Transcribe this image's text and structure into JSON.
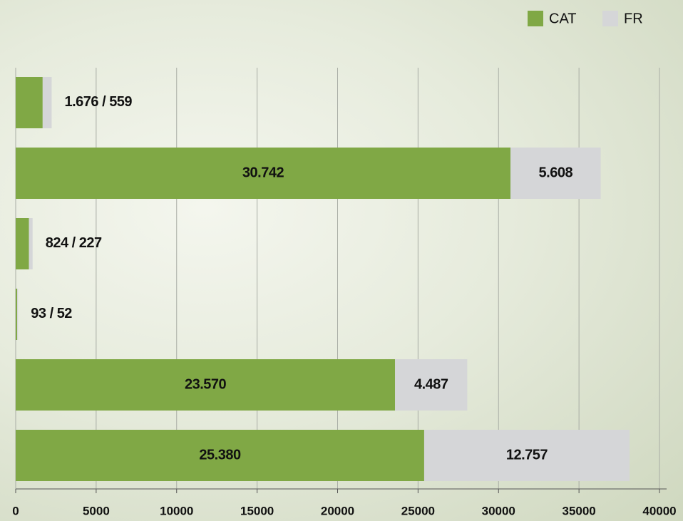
{
  "chart_data": {
    "type": "stacked-barh",
    "categories": [
      null,
      null,
      null,
      null,
      null,
      null
    ],
    "series": [
      {
        "name": "CAT",
        "color": "#80a845",
        "values": [
          1676,
          30742,
          824,
          93,
          23570,
          25380
        ],
        "value_labels": [
          "1.676",
          "30.742",
          "824",
          "93",
          "23.570",
          "25.380"
        ]
      },
      {
        "name": "FR",
        "color": "#d5d6d8",
        "values": [
          559,
          5608,
          227,
          52,
          4487,
          12757
        ],
        "value_labels": [
          "559",
          "5.608",
          "227",
          "52",
          "4.487",
          "12.757"
        ]
      }
    ],
    "label_separator": " / ",
    "xlim": [
      0,
      40000
    ],
    "xticks": [
      0,
      5000,
      10000,
      15000,
      20000,
      25000,
      30000,
      35000,
      40000
    ],
    "grid": true,
    "legend": "top-right"
  }
}
